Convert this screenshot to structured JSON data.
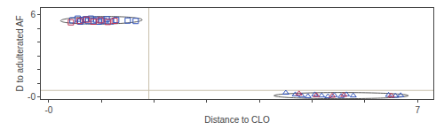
{
  "chart_data": {
    "type": "scatter",
    "x_label": "Distance to CLO",
    "y_label": "D to adulterated AF",
    "xlim": [
      -0.15,
      7.3
    ],
    "ylim": [
      -0.15,
      6.5
    ],
    "xticks": [
      {
        "value": 0,
        "label": "-0"
      },
      {
        "value": 1,
        "label": null
      },
      {
        "value": 2,
        "label": null
      },
      {
        "value": 3,
        "label": null
      },
      {
        "value": 4,
        "label": null
      },
      {
        "value": 5,
        "label": null
      },
      {
        "value": 6,
        "label": null
      },
      7
    ],
    "yticks": [
      {
        "value": 0,
        "label": "-0"
      },
      {
        "value": 1,
        "label": null
      },
      {
        "value": 2,
        "label": null
      },
      {
        "value": 3,
        "label": null
      },
      {
        "value": 4,
        "label": null
      },
      {
        "value": 5,
        "label": null
      },
      6
    ],
    "grid": false,
    "series": [
      {
        "color": "#3355bb",
        "marker": "square-open",
        "x": [
          0.45,
          0.55,
          0.6,
          0.65,
          0.7,
          0.75,
          0.8,
          0.85,
          0.9,
          0.95,
          1.0,
          1.05,
          1.1,
          1.18,
          1.28,
          1.5,
          1.65
        ],
        "values": [
          5.6,
          5.72,
          5.5,
          5.62,
          5.68,
          5.55,
          5.72,
          5.58,
          5.65,
          5.5,
          5.6,
          5.55,
          5.68,
          5.52,
          5.62,
          5.58,
          5.55
        ]
      },
      {
        "color": "#bb3355",
        "marker": "square-open",
        "x": [
          0.42,
          0.58,
          0.72,
          0.85,
          0.98,
          1.12,
          1.25
        ],
        "values": [
          5.45,
          5.55,
          5.65,
          5.5,
          5.6,
          5.48,
          5.56
        ]
      },
      {
        "color": "#3355bb",
        "marker": "triangle-up-open",
        "x": [
          4.5,
          4.68,
          4.8,
          4.92,
          5.05,
          5.18,
          5.3,
          5.42,
          5.55,
          5.65,
          5.78,
          6.45,
          6.58,
          6.68
        ],
        "values": [
          0.3,
          0.18,
          0.1,
          0.05,
          0.18,
          0.1,
          0.04,
          0.12,
          0.06,
          0.18,
          0.1,
          0.14,
          0.08,
          0.12
        ]
      },
      {
        "color": "#bb3355",
        "marker": "triangle-up-open",
        "x": [
          4.75,
          5.08,
          5.38,
          5.6,
          6.5
        ],
        "values": [
          0.25,
          0.12,
          0.08,
          0.14,
          0.1
        ]
      }
    ],
    "ellipses": [
      {
        "cx": 1.0,
        "cy": 5.6,
        "width": 1.55,
        "height": 0.55,
        "angle": 3,
        "color": "#555555"
      },
      {
        "cx": 5.55,
        "cy": 0.1,
        "width": 2.55,
        "height": 0.45,
        "angle": 0,
        "color": "#555555"
      }
    ],
    "vline": {
      "x": 1.9,
      "color": "#c8bfaa"
    },
    "hline": {
      "y": 0.48,
      "color": "#c8bfaa"
    }
  }
}
